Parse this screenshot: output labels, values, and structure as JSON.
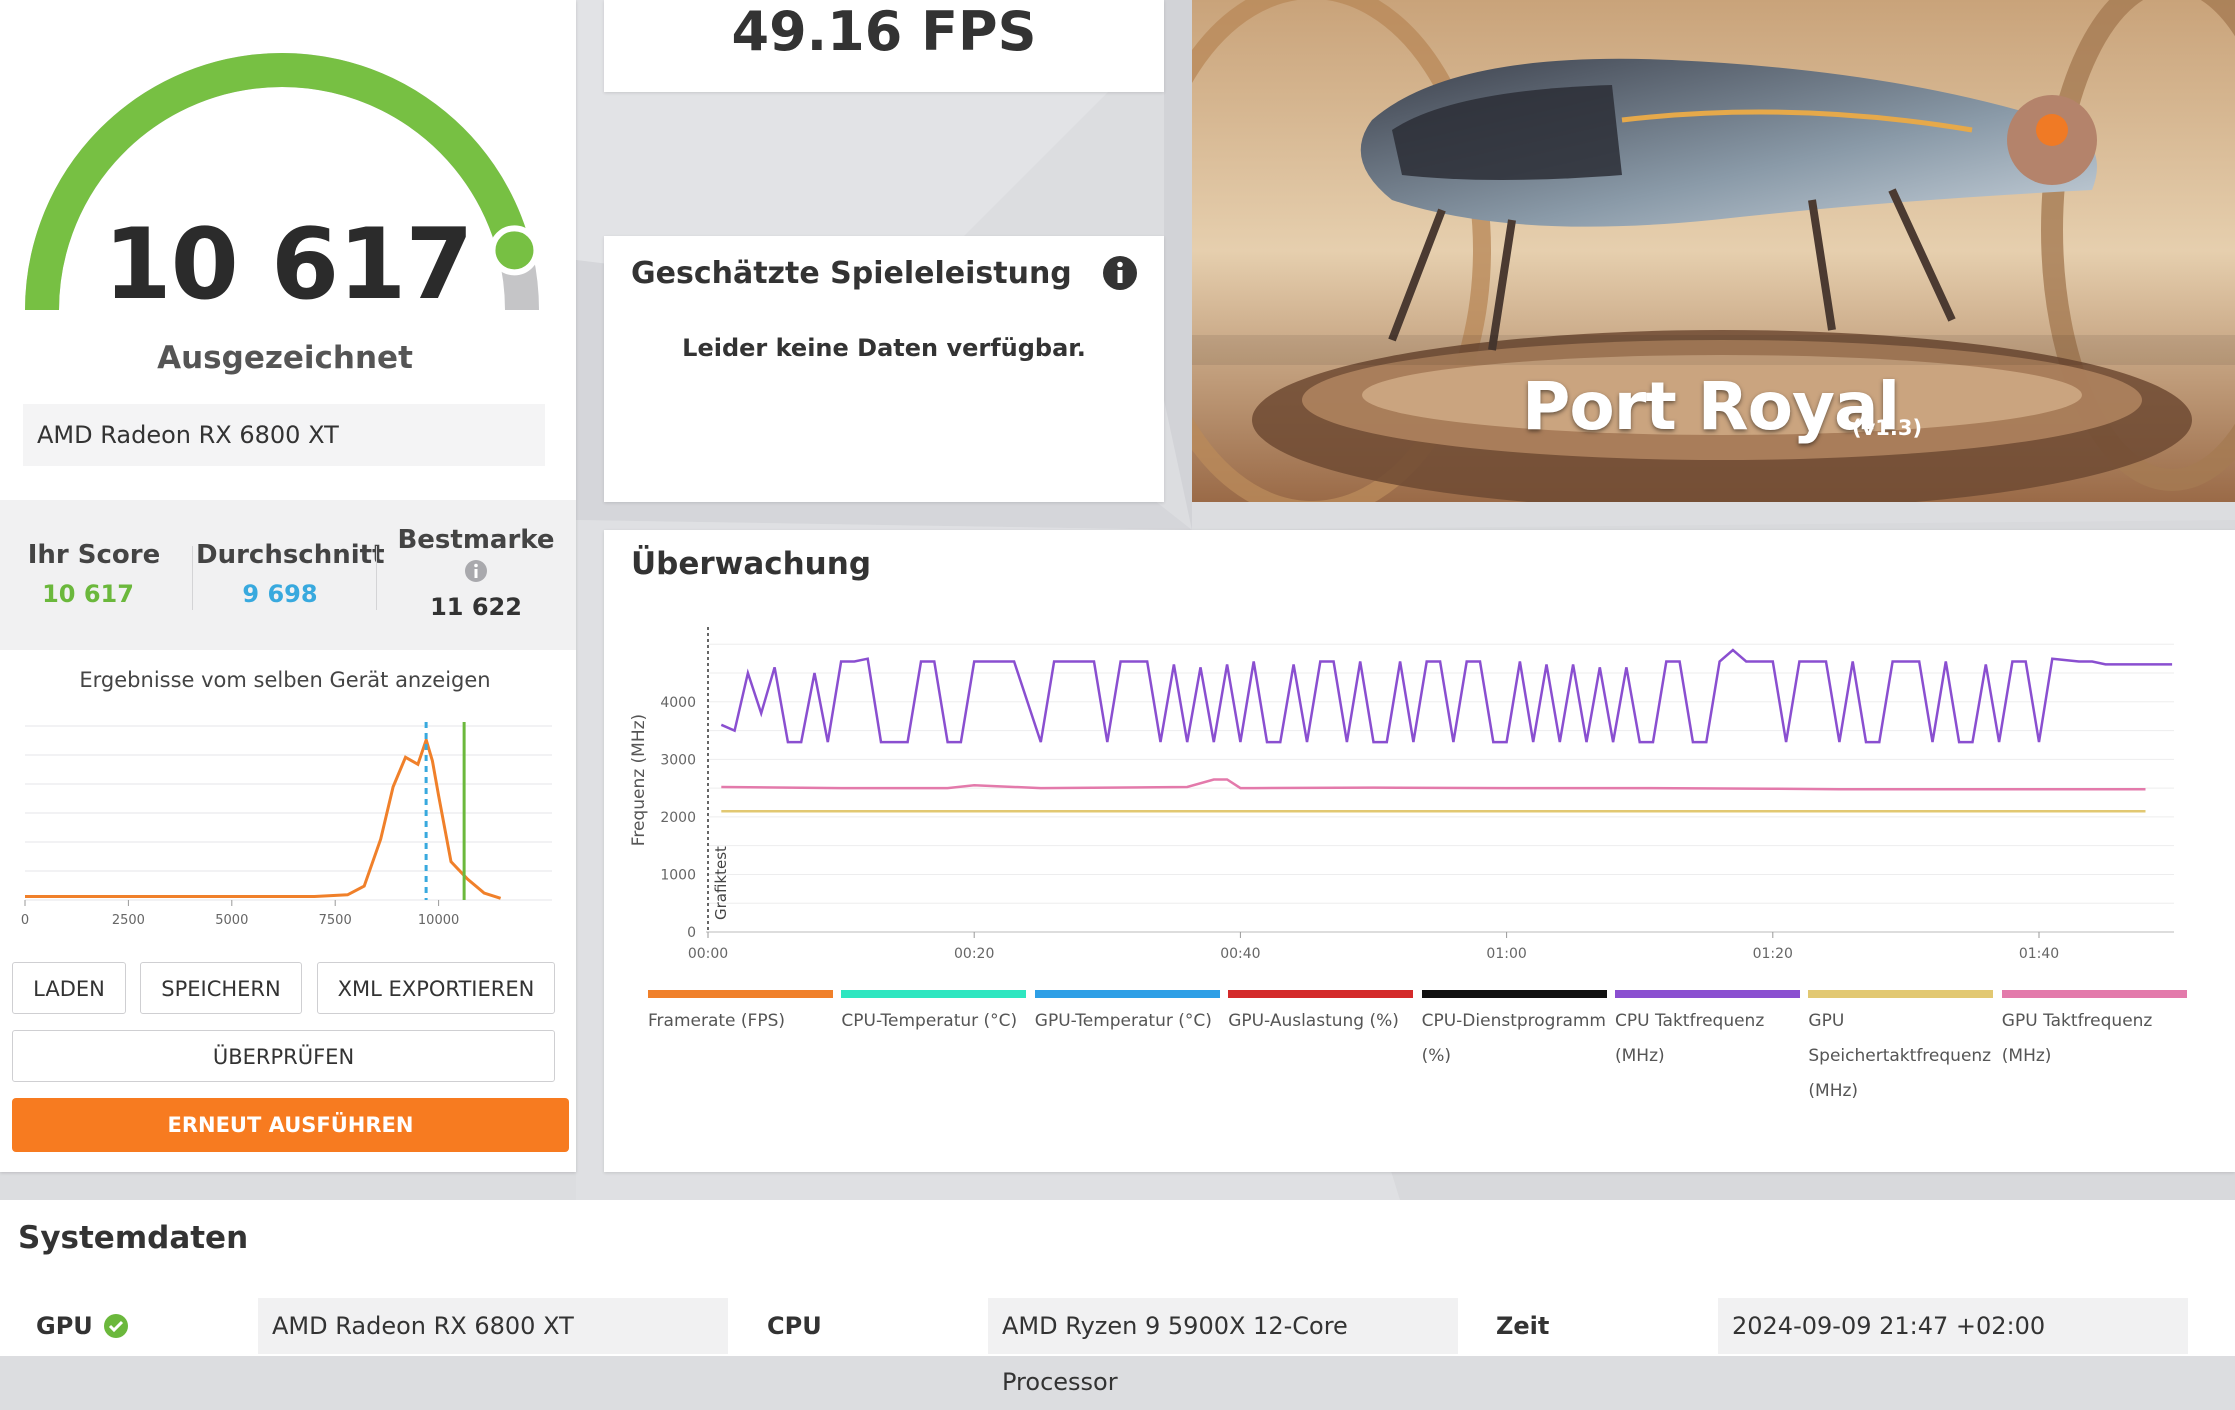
{
  "score_panel": {
    "score": "10 617",
    "gauge_level": 0.92,
    "rating": "Ausgezeichnet",
    "device": "AMD Radeon RX 6800 XT",
    "stats": {
      "your_score_label": "Ihr Score",
      "your_score_value": "10 617",
      "average_label": "Durchschnitt",
      "average_value": "9 698",
      "best_label": "Bestmarke",
      "best_value": "11 622"
    },
    "results_label": "Ergebnisse vom selben Gerät anzeigen"
  },
  "buttons": {
    "load": "LADEN",
    "save": "SPEICHERN",
    "export_xml": "XML EXPORTIEREN",
    "validate": "ÜBERPRÜFEN",
    "run_again": "ERNEUT AUSFÜHREN"
  },
  "fps": "49.16 FPS",
  "estimate": {
    "title": "Geschätzte Spieleleistung",
    "message": "Leider keine Daten verfügbar."
  },
  "hero": {
    "title": "Port Royal",
    "version": "(v1.3)"
  },
  "monitoring": {
    "title": "Überwachung",
    "legend": [
      {
        "label": "Framerate (FPS)",
        "color": "#f0802a"
      },
      {
        "label": "CPU-Temperatur (°C)",
        "color": "#2ee6c0"
      },
      {
        "label": "GPU-Temperatur (°C)",
        "color": "#2e9fe6"
      },
      {
        "label": "GPU-Auslastung (%)",
        "color": "#d42a2a"
      },
      {
        "label": "CPU-Dienstprogramm (%)",
        "color": "#111111"
      },
      {
        "label": "CPU Taktfrequenz (MHz)",
        "color": "#8a4fd0"
      },
      {
        "label": "GPU Speichertaktfrequenz (MHz)",
        "color": "#e2c872"
      },
      {
        "label": "GPU Taktfrequenz (MHz)",
        "color": "#e37aab"
      }
    ]
  },
  "system": {
    "title": "Systemdaten",
    "gpu_label": "GPU",
    "gpu_value": "AMD Radeon RX 6800 XT",
    "cpu_label": "CPU",
    "cpu_value": "AMD Ryzen 9 5900X 12-Core Processor",
    "time_label": "Zeit",
    "time_value": "2024-09-09 21:47 +02:00"
  },
  "chart_data": [
    {
      "type": "line",
      "title": "",
      "xlabel": "",
      "ylabel": "",
      "x_ticks": [
        "0",
        "2500",
        "5000",
        "7500",
        "10000"
      ],
      "xlim": [
        0,
        12500
      ],
      "series": [
        {
          "x": [
            0,
            1000,
            2000,
            3000,
            4000,
            5000,
            6000,
            7000,
            7800,
            8200,
            8600,
            8900,
            9200,
            9500,
            9700,
            9850,
            10000,
            10300,
            10700,
            11100,
            11500
          ],
          "values": [
            0.02,
            0.02,
            0.02,
            0.02,
            0.02,
            0.02,
            0.02,
            0.02,
            0.03,
            0.08,
            0.35,
            0.65,
            0.82,
            0.78,
            0.92,
            0.8,
            0.6,
            0.22,
            0.12,
            0.04,
            0.01
          ]
        }
      ],
      "markers": {
        "average": 9698,
        "your_score": 10617
      }
    },
    {
      "type": "line",
      "title": "Überwachung",
      "xlabel": "",
      "ylabel": "Frequenz (MHz)",
      "annotation": "Grafiktest",
      "x_ticks": [
        "00:00",
        "00:20",
        "00:40",
        "01:00",
        "01:20",
        "01:40"
      ],
      "y_ticks": [
        0,
        1000,
        2000,
        3000,
        4000
      ],
      "ylim": [
        0,
        5300
      ],
      "xlim": [
        0,
        110
      ],
      "series": [
        {
          "name": "CPU Taktfrequenz (MHz)",
          "color": "#8a4fd0",
          "x": [
            1,
            2,
            3,
            4,
            5,
            6,
            7,
            8,
            9,
            10,
            11,
            12,
            13,
            15,
            16,
            17,
            18,
            19,
            20,
            21,
            22,
            23,
            25,
            26,
            27,
            28,
            29,
            30,
            31,
            32,
            33,
            34,
            35,
            36,
            37,
            38,
            39,
            40,
            41,
            42,
            43,
            44,
            45,
            46,
            47,
            48,
            49,
            50,
            51,
            52,
            53,
            54,
            55,
            56,
            57,
            58,
            59,
            60,
            61,
            62,
            63,
            64,
            65,
            66,
            67,
            68,
            69,
            70,
            71,
            72,
            73,
            74,
            75,
            76,
            77,
            78,
            79,
            80,
            81,
            82,
            83,
            84,
            85,
            86,
            87,
            88,
            89,
            90,
            91,
            92,
            93,
            94,
            95,
            96,
            97,
            98,
            99,
            100,
            101,
            103,
            104,
            105,
            106,
            108,
            110
          ],
          "values": [
            3600,
            3500,
            4500,
            3800,
            4600,
            3300,
            3300,
            4500,
            3300,
            4700,
            4700,
            4750,
            3300,
            3300,
            4700,
            4700,
            3300,
            3300,
            4700,
            4700,
            4700,
            4700,
            3300,
            4700,
            4700,
            4700,
            4700,
            3300,
            4700,
            4700,
            4700,
            3300,
            4650,
            3300,
            4600,
            3300,
            4650,
            3300,
            4700,
            3300,
            3300,
            4650,
            3300,
            4700,
            4700,
            3300,
            4700,
            3300,
            3300,
            4700,
            3300,
            4700,
            4700,
            3300,
            4700,
            4700,
            3300,
            3300,
            4700,
            3300,
            4650,
            3300,
            4650,
            3300,
            4600,
            3300,
            4600,
            3300,
            3300,
            4700,
            4700,
            3300,
            3300,
            4700,
            4900,
            4700,
            4700,
            4700,
            3300,
            4700,
            4700,
            4700,
            3300,
            4700,
            3300,
            3300,
            4700,
            4700,
            4700,
            3300,
            4700,
            3300,
            3300,
            4650,
            3300,
            4700,
            4700,
            3300,
            4750,
            4700,
            4700,
            4650,
            4650,
            4650,
            4650
          ]
        },
        {
          "name": "GPU Taktfrequenz (MHz)",
          "color": "#e37aab",
          "x": [
            1,
            10,
            18,
            20,
            25,
            36,
            38,
            39,
            40,
            41,
            50,
            60,
            70,
            80,
            85,
            90,
            100,
            108
          ],
          "values": [
            2520,
            2500,
            2500,
            2550,
            2500,
            2520,
            2650,
            2650,
            2500,
            2500,
            2510,
            2500,
            2500,
            2490,
            2480,
            2480,
            2480,
            2480
          ]
        },
        {
          "name": "GPU Speichertaktfrequenz (MHz)",
          "color": "#e2c872",
          "x": [
            1,
            108
          ],
          "values": [
            2100,
            2100
          ]
        }
      ]
    }
  ]
}
